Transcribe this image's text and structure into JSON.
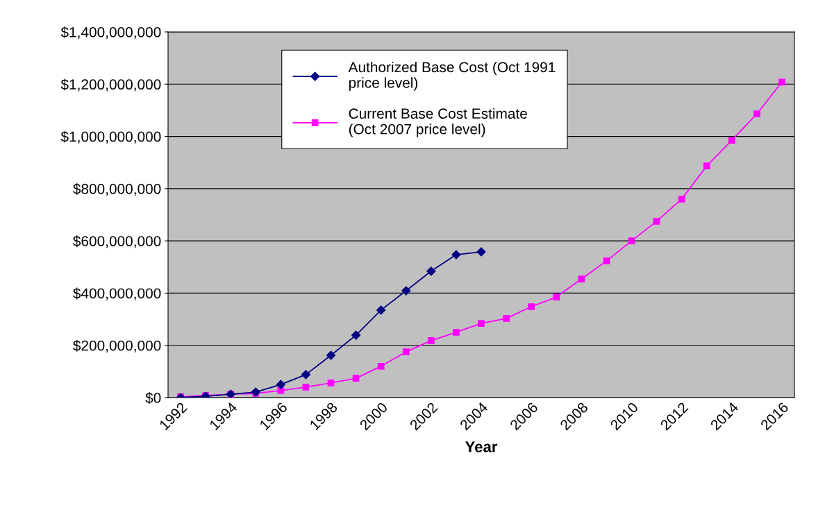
{
  "chart_data": {
    "type": "line",
    "xlabel": "Year",
    "categories": [
      "1992",
      null,
      "1994",
      null,
      "1996",
      null,
      "1998",
      null,
      "2000",
      null,
      "2002",
      null,
      "2004",
      null,
      "2006",
      null,
      "2008",
      null,
      "2010",
      null,
      "2012",
      null,
      "2014",
      null,
      "2016"
    ],
    "series": [
      {
        "name": "Authorized Base Cost (Oct 1991 price level)",
        "color": "#000080",
        "marker": "diamond",
        "values": [
          0,
          5000000,
          13000000,
          21000000,
          50000000,
          88000000,
          162000000,
          239000000,
          335000000,
          409000000,
          484000000,
          547000000,
          558000000,
          null,
          null,
          null,
          null,
          null,
          null,
          null,
          null,
          null,
          null,
          null,
          null
        ]
      },
      {
        "name": "Current Base Cost Estimate (Oct 2007 price level)",
        "color": "#ff00ff",
        "marker": "square",
        "values": [
          3000000,
          8000000,
          13000000,
          16000000,
          27000000,
          40000000,
          56000000,
          74000000,
          120000000,
          175000000,
          218000000,
          250000000,
          284000000,
          303000000,
          348000000,
          385000000,
          454000000,
          523000000,
          600000000,
          675000000,
          760000000,
          887000000,
          985000000,
          1086000000,
          1208000000
        ]
      }
    ],
    "ylim": [
      0,
      1400000000
    ],
    "yticks": [
      {
        "value": 0,
        "label": "$0"
      },
      {
        "value": 200000000,
        "label": "$200,000,000"
      },
      {
        "value": 400000000,
        "label": "$400,000,000"
      },
      {
        "value": 600000000,
        "label": "$600,000,000"
      },
      {
        "value": 800000000,
        "label": "$800,000,000"
      },
      {
        "value": 1000000000,
        "label": "$1,000,000,000"
      },
      {
        "value": 1200000000,
        "label": "$1,200,000,000"
      },
      {
        "value": 1400000000,
        "label": "$1,400,000,000"
      }
    ],
    "grid": "y",
    "legend": "top left",
    "line_style": "solid"
  }
}
